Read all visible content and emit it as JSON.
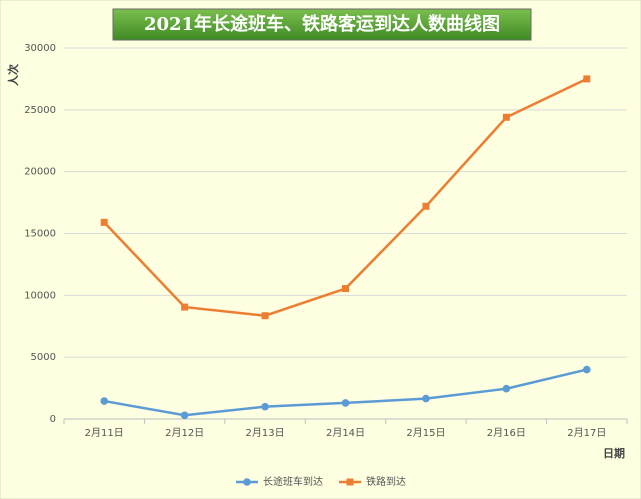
{
  "chart_data": {
    "type": "line",
    "title": "2021年长途班车、铁路客运到达人数曲线图",
    "y_label": "人次",
    "x_label": "日期",
    "categories": [
      "2月11日",
      "2月12日",
      "2月13日",
      "2月14日",
      "2月15日",
      "2月16日",
      "2月17日"
    ],
    "series": [
      {
        "name": "长途班车到达",
        "color": "#5b9bd5",
        "marker": "circle",
        "values": [
          1450,
          300,
          1000,
          1300,
          1650,
          2450,
          4000
        ]
      },
      {
        "name": "铁路到达",
        "color": "#ed7d31",
        "marker": "square",
        "values": [
          15900,
          9050,
          8350,
          10550,
          17200,
          24400,
          27500
        ]
      }
    ],
    "ylim": [
      0,
      30000
    ],
    "yticks": [
      0,
      5000,
      10000,
      15000,
      20000,
      25000,
      30000
    ],
    "grid": true,
    "legend": "bottom"
  }
}
